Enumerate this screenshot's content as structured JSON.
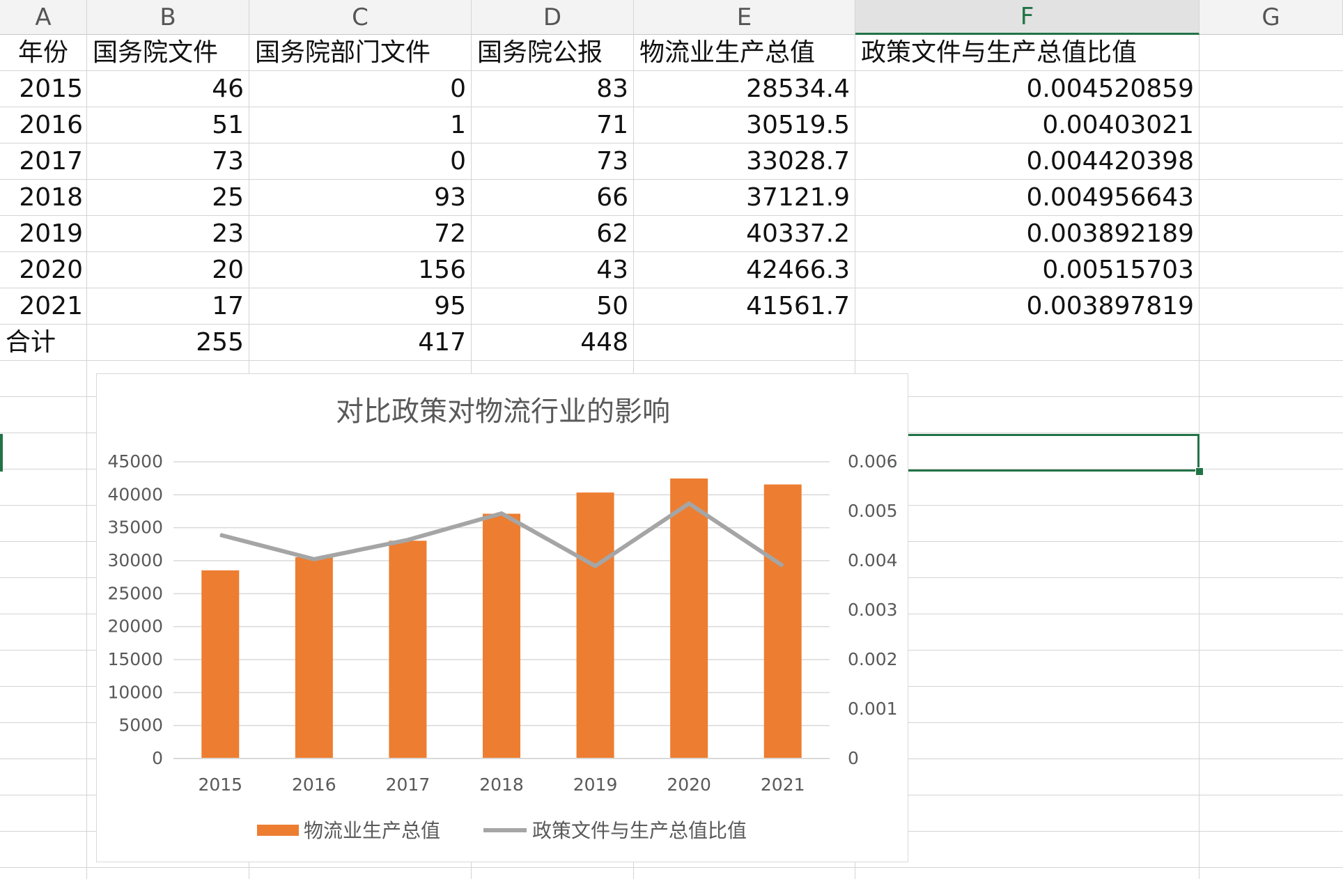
{
  "sheet": {
    "columns": [
      "A",
      "B",
      "C",
      "D",
      "E",
      "F",
      "G"
    ],
    "selected_column": "F",
    "rows": [
      [
        "年份",
        "国务院文件",
        "国务院部门文件",
        "国务院公报",
        "物流业生产总值",
        "政策文件与生产总值比值"
      ],
      [
        "2015",
        "46",
        "0",
        "83",
        "28534.4",
        "0.004520859"
      ],
      [
        "2016",
        "51",
        "1",
        "71",
        "30519.5",
        "0.00403021"
      ],
      [
        "2017",
        "73",
        "0",
        "73",
        "33028.7",
        "0.004420398"
      ],
      [
        "2018",
        "25",
        "93",
        "66",
        "37121.9",
        "0.004956643"
      ],
      [
        "2019",
        "23",
        "72",
        "62",
        "40337.2",
        "0.003892189"
      ],
      [
        "2020",
        "20",
        "156",
        "43",
        "42466.3",
        "0.00515703"
      ],
      [
        "2021",
        "17",
        "95",
        "50",
        "41561.7",
        "0.003897819"
      ],
      [
        "合计",
        "255",
        "417",
        "448",
        "",
        ""
      ]
    ]
  },
  "chart_data": {
    "type": "bar",
    "title": "对比政策对物流行业的影响",
    "categories": [
      "2015",
      "2016",
      "2017",
      "2018",
      "2019",
      "2020",
      "2021"
    ],
    "series": [
      {
        "name": "物流业生产总值",
        "type": "bar",
        "axis": "primary",
        "color": "#ED7D31",
        "values": [
          28534.4,
          30519.5,
          33028.7,
          37121.9,
          40337.2,
          42466.3,
          41561.7
        ]
      },
      {
        "name": "政策文件与生产总值比值",
        "type": "line",
        "axis": "secondary",
        "color": "#A5A5A5",
        "values": [
          0.004520859,
          0.00403021,
          0.004420398,
          0.004956643,
          0.003892189,
          0.00515703,
          0.003897819
        ]
      }
    ],
    "y_primary": {
      "min": 0,
      "max": 45000,
      "step": 5000,
      "ticks": [
        "0",
        "5000",
        "10000",
        "15000",
        "20000",
        "25000",
        "30000",
        "35000",
        "40000",
        "45000"
      ]
    },
    "y_secondary": {
      "min": 0,
      "max": 0.006,
      "step": 0.001,
      "ticks": [
        "0",
        "0.001",
        "0.002",
        "0.003",
        "0.004",
        "0.005",
        "0.006"
      ]
    },
    "grid": true,
    "legend_position": "bottom"
  }
}
